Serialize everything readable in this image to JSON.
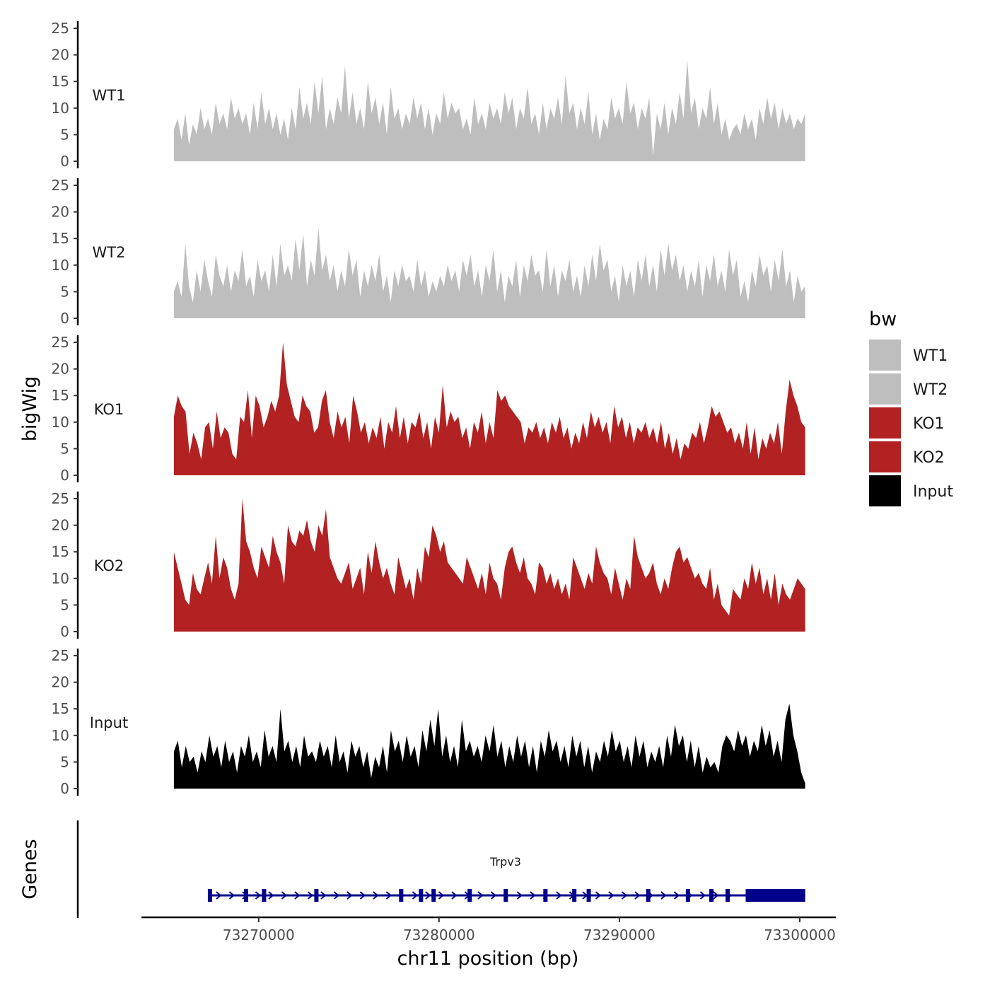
{
  "chart_data": {
    "type": "area",
    "region": {
      "chromosome": "chr11",
      "start": 73265300,
      "end": 73300300
    },
    "ylabel": "bigWig",
    "xlabel": "chr11 position (bp)",
    "xlim": [
      73263500,
      73302000
    ],
    "ylim": [
      0,
      25
    ],
    "y_ticks": [
      "0",
      "5",
      "10",
      "15",
      "20",
      "25"
    ],
    "x_ticks": [
      {
        "value": 73270000,
        "label": "73270000"
      },
      {
        "value": 73280000,
        "label": "73280000"
      },
      {
        "value": 73290000,
        "label": "73290000"
      },
      {
        "value": 73300000,
        "label": "73300000"
      }
    ],
    "legend": {
      "title": "bw",
      "entries": [
        {
          "label": "WT1",
          "color": "#bebebe"
        },
        {
          "label": "WT2",
          "color": "#bebebe"
        },
        {
          "label": "KO1",
          "color": "#b22222"
        },
        {
          "label": "KO2",
          "color": "#b22222"
        },
        {
          "label": "Input",
          "color": "#000000"
        }
      ]
    },
    "series": [
      {
        "name": "WT1",
        "color": "#bebebe",
        "values": [
          6,
          8,
          4,
          9,
          3,
          7,
          5,
          10,
          6,
          8,
          5,
          11,
          7,
          9,
          6,
          12,
          8,
          10,
          7,
          9,
          5,
          11,
          6,
          13,
          7,
          10,
          6,
          9,
          5,
          8,
          4,
          10,
          6,
          14,
          8,
          11,
          7,
          15,
          9,
          16,
          6,
          10,
          7,
          12,
          9,
          18,
          8,
          13,
          7,
          10,
          6,
          15,
          9,
          12,
          7,
          11,
          5,
          14,
          8,
          10,
          6,
          9,
          7,
          12,
          8,
          11,
          6,
          10,
          5,
          9,
          7,
          13,
          8,
          11,
          9,
          10,
          6,
          8,
          5,
          12,
          7,
          9,
          6,
          11,
          8,
          10,
          7,
          13,
          9,
          12,
          6,
          10,
          8,
          14,
          7,
          9,
          5,
          11,
          6,
          10,
          8,
          12,
          7,
          16,
          9,
          11,
          6,
          10,
          7,
          13,
          5,
          9,
          4,
          8,
          6,
          12,
          8,
          10,
          7,
          15,
          9,
          11,
          6,
          10,
          8,
          12,
          1,
          9,
          6,
          11,
          5,
          10,
          7,
          13,
          8,
          19,
          9,
          12,
          6,
          10,
          8,
          14,
          7,
          11,
          5,
          8,
          4,
          6,
          7,
          5,
          9,
          6,
          8,
          4,
          10,
          7,
          12,
          8,
          11,
          6,
          10,
          7,
          9,
          6,
          8,
          7,
          9
        ]
      },
      {
        "name": "WT2",
        "color": "#bebebe",
        "values": [
          5,
          7,
          4,
          14,
          6,
          3,
          9,
          5,
          11,
          7,
          4,
          12,
          8,
          6,
          10,
          5,
          9,
          7,
          13,
          6,
          8,
          4,
          11,
          7,
          9,
          5,
          12,
          6,
          14,
          8,
          10,
          7,
          15,
          9,
          16,
          6,
          11,
          8,
          17,
          9,
          12,
          7,
          10,
          5,
          9,
          6,
          13,
          8,
          11,
          4,
          9,
          6,
          10,
          7,
          12,
          5,
          8,
          3,
          9,
          6,
          10,
          7,
          8,
          5,
          11,
          6,
          9,
          4,
          7,
          5,
          8,
          6,
          10,
          7,
          9,
          5,
          11,
          8,
          12,
          6,
          9,
          4,
          10,
          7,
          13,
          5,
          9,
          3,
          8,
          6,
          11,
          4,
          10,
          7,
          12,
          8,
          9,
          5,
          13,
          6,
          10,
          4,
          9,
          7,
          11,
          5,
          8,
          4,
          10,
          6,
          12,
          7,
          14,
          9,
          11,
          5,
          8,
          3,
          10,
          6,
          9,
          4,
          11,
          7,
          12,
          6,
          10,
          5,
          13,
          8,
          14,
          9,
          12,
          7,
          10,
          5,
          9,
          6,
          11,
          4,
          10,
          7,
          12,
          6,
          9,
          5,
          13,
          8,
          11,
          4,
          7,
          3,
          9,
          6,
          12,
          8,
          10,
          5,
          11,
          7,
          13,
          6,
          9,
          3,
          8,
          5,
          6
        ]
      },
      {
        "name": "KO1",
        "color": "#b22222",
        "values": [
          11,
          15,
          13,
          12,
          4,
          8,
          6,
          3,
          9,
          10,
          5,
          12,
          7,
          9,
          8,
          4,
          3,
          11,
          10,
          16,
          7,
          15,
          13,
          9,
          11,
          14,
          12,
          15,
          25,
          17,
          14,
          11,
          10,
          15,
          13,
          12,
          8,
          9,
          14,
          16,
          10,
          7,
          12,
          9,
          11,
          6,
          15,
          12,
          8,
          10,
          6,
          9,
          7,
          11,
          5,
          10,
          8,
          13,
          7,
          11,
          6,
          10,
          9,
          12,
          7,
          10,
          5,
          11,
          8,
          17,
          9,
          12,
          10,
          11,
          7,
          9,
          5,
          10,
          8,
          12,
          6,
          10,
          7,
          16,
          14,
          15,
          13,
          12,
          11,
          10,
          6,
          9,
          8,
          10,
          7,
          9,
          6,
          10,
          8,
          11,
          7,
          9,
          5,
          8,
          6,
          10,
          7,
          12,
          9,
          11,
          8,
          10,
          6,
          13,
          9,
          11,
          7,
          10,
          6,
          9,
          8,
          10,
          7,
          9,
          6,
          10,
          5,
          8,
          4,
          7,
          3,
          6,
          5,
          8,
          7,
          10,
          6,
          9,
          13,
          11,
          12,
          10,
          8,
          9,
          6,
          8,
          5,
          10,
          4,
          9,
          3,
          7,
          5,
          8,
          6,
          10,
          4,
          12,
          18,
          15,
          13,
          10,
          9
        ]
      },
      {
        "name": "KO2",
        "color": "#b22222",
        "values": [
          15,
          12,
          9,
          6,
          5,
          11,
          8,
          7,
          10,
          13,
          9,
          18,
          10,
          14,
          12,
          8,
          6,
          9,
          25,
          17,
          15,
          12,
          10,
          16,
          14,
          12,
          18,
          15,
          13,
          9,
          20,
          17,
          16,
          19,
          18,
          21,
          17,
          15,
          20,
          18,
          23,
          14,
          12,
          10,
          9,
          11,
          13,
          8,
          10,
          12,
          7,
          15,
          11,
          17,
          13,
          10,
          12,
          9,
          7,
          14,
          11,
          8,
          10,
          6,
          12,
          9,
          16,
          14,
          20,
          18,
          15,
          17,
          13,
          12,
          11,
          10,
          9,
          14,
          12,
          10,
          8,
          11,
          7,
          13,
          10,
          9,
          6,
          12,
          15,
          16,
          13,
          11,
          14,
          10,
          9,
          7,
          13,
          12,
          9,
          11,
          8,
          10,
          7,
          9,
          6,
          14,
          12,
          10,
          8,
          11,
          9,
          16,
          13,
          11,
          10,
          7,
          12,
          9,
          6,
          10,
          8,
          18,
          14,
          12,
          10,
          11,
          13,
          9,
          7,
          10,
          8,
          12,
          15,
          16,
          13,
          14,
          12,
          10,
          11,
          9,
          8,
          12,
          6,
          9,
          5,
          4,
          3,
          8,
          7,
          6,
          10,
          8,
          13,
          9,
          12,
          7,
          10,
          6,
          11,
          5,
          9,
          7,
          6,
          8,
          10,
          9,
          8
        ]
      },
      {
        "name": "Input",
        "color": "#000000",
        "values": [
          7,
          9,
          4,
          8,
          5,
          6,
          3,
          7,
          5,
          10,
          6,
          8,
          4,
          9,
          5,
          7,
          3,
          8,
          6,
          10,
          5,
          7,
          4,
          11,
          6,
          8,
          5,
          15,
          7,
          9,
          5,
          8,
          4,
          10,
          6,
          7,
          5,
          9,
          6,
          8,
          4,
          10,
          5,
          7,
          3,
          9,
          6,
          8,
          4,
          7,
          2,
          6,
          4,
          8,
          3,
          11,
          7,
          9,
          5,
          10,
          6,
          8,
          4,
          11,
          7,
          13,
          8,
          15,
          6,
          10,
          5,
          8,
          4,
          13,
          7,
          9,
          6,
          8,
          5,
          10,
          7,
          12,
          6,
          9,
          4,
          8,
          5,
          10,
          6,
          9,
          4,
          8,
          3,
          9,
          6,
          11,
          7,
          9,
          5,
          8,
          4,
          10,
          6,
          9,
          4,
          8,
          3,
          7,
          5,
          9,
          6,
          11,
          7,
          9,
          5,
          8,
          4,
          10,
          6,
          9,
          4,
          7,
          5,
          8,
          4,
          10,
          6,
          12,
          8,
          10,
          5,
          9,
          4,
          8,
          3,
          6,
          4,
          5,
          3,
          8,
          10,
          9,
          7,
          11,
          8,
          10,
          6,
          9,
          7,
          12,
          8,
          11,
          6,
          9,
          5,
          13,
          16,
          10,
          7,
          3,
          1
        ]
      }
    ],
    "genes_panel": {
      "ylabel": "Genes",
      "genes": [
        {
          "name": "Trpv3",
          "start": 73267300,
          "end": 73300300,
          "strand": "+",
          "exons": [
            73267300,
            73269300,
            73270300,
            73273200,
            73277900,
            73279000,
            73279700,
            73281700,
            73283700,
            73285900,
            73287500,
            73288300,
            73291600,
            73293800,
            73295100,
            73296000
          ],
          "big_exon": [
            73297000,
            73300300
          ]
        }
      ]
    }
  }
}
